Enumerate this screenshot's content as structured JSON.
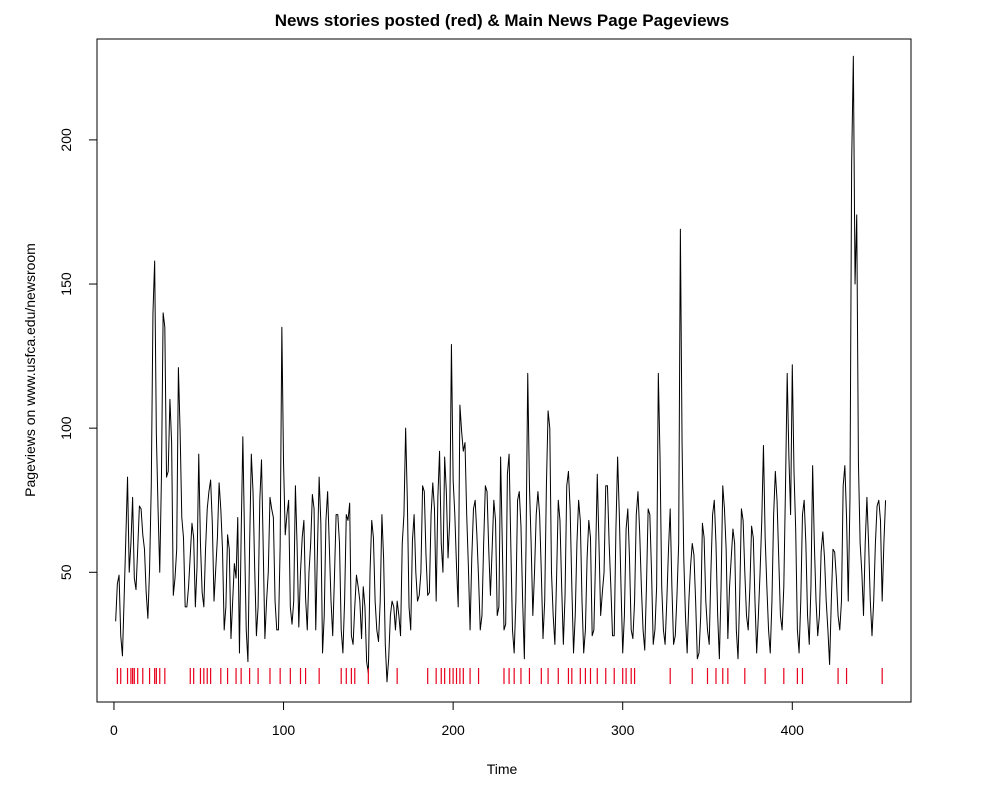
{
  "chart_data": {
    "type": "line",
    "title": "News stories posted (red) & Main News Page Pageviews",
    "xlabel": "Time",
    "ylabel": "Pageviews on www.usfca.edu/newsroom",
    "xlim": [
      -10,
      470
    ],
    "ylim": [
      5,
      235
    ],
    "x_ticks": [
      0,
      100,
      200,
      300,
      400
    ],
    "y_ticks": [
      50,
      100,
      150,
      200
    ],
    "grid": false,
    "legend": "none",
    "colors": {
      "line": "#000000",
      "story_marks": "#e8001c",
      "frame": "#000000"
    },
    "series": [
      {
        "start_x": 1,
        "values": [
          33,
          46,
          49,
          28,
          21,
          41,
          62,
          83,
          50,
          60,
          76,
          48,
          44,
          58,
          73,
          72,
          63,
          58,
          43,
          34,
          51,
          80,
          140,
          158,
          98,
          72,
          50,
          83,
          140,
          135,
          83,
          85,
          110,
          95,
          42,
          48,
          58,
          121,
          99,
          69,
          62,
          38,
          38,
          45,
          56,
          67,
          62,
          38,
          52,
          91,
          60,
          43,
          38,
          58,
          72,
          78,
          82,
          67,
          40,
          51,
          62,
          81,
          72,
          58,
          30,
          38,
          63,
          58,
          27,
          40,
          53,
          48,
          69,
          22,
          63,
          97,
          62,
          30,
          19,
          60,
          91,
          78,
          51,
          28,
          38,
          75,
          89,
          59,
          27,
          40,
          50,
          76,
          72,
          69,
          40,
          30,
          30,
          59,
          135,
          88,
          63,
          70,
          75,
          38,
          32,
          40,
          80,
          59,
          31,
          50,
          62,
          68,
          41,
          30,
          50,
          60,
          77,
          72,
          30,
          58,
          83,
          67,
          22,
          35,
          68,
          78,
          59,
          40,
          28,
          48,
          70,
          70,
          60,
          30,
          22,
          40,
          70,
          68,
          74,
          28,
          25,
          38,
          49,
          45,
          40,
          27,
          45,
          38,
          19,
          15,
          50,
          68,
          62,
          40,
          30,
          26,
          40,
          70,
          55,
          25,
          12,
          20,
          35,
          40,
          38,
          30,
          40,
          35,
          28,
          60,
          70,
          100,
          75,
          38,
          30,
          61,
          70,
          50,
          40,
          42,
          50,
          80,
          78,
          56,
          42,
          43,
          70,
          81,
          72,
          40,
          76,
          92,
          60,
          50,
          90,
          78,
          55,
          68,
          129,
          82,
          70,
          52,
          38,
          108,
          99,
          92,
          95,
          70,
          52,
          30,
          55,
          72,
          75,
          63,
          48,
          30,
          35,
          60,
          80,
          78,
          58,
          42,
          58,
          75,
          68,
          35,
          38,
          90,
          60,
          30,
          32,
          84,
          91,
          60,
          30,
          22,
          40,
          75,
          78,
          66,
          40,
          20,
          60,
          119,
          80,
          60,
          35,
          50,
          70,
          78,
          70,
          50,
          27,
          40,
          80,
          106,
          100,
          50,
          35,
          25,
          48,
          75,
          68,
          45,
          25,
          42,
          80,
          85,
          72,
          45,
          22,
          35,
          60,
          75,
          68,
          40,
          22,
          30,
          55,
          68,
          62,
          28,
          30,
          55,
          84,
          60,
          35,
          43,
          50,
          80,
          80,
          60,
          45,
          28,
          28,
          65,
          90,
          70,
          45,
          22,
          35,
          65,
          72,
          55,
          30,
          27,
          40,
          70,
          78,
          64,
          45,
          30,
          23,
          45,
          72,
          70,
          50,
          25,
          30,
          45,
          119,
          90,
          45,
          30,
          25,
          40,
          58,
          72,
          45,
          25,
          28,
          42,
          60,
          169,
          95,
          55,
          35,
          22,
          40,
          52,
          60,
          56,
          40,
          20,
          22,
          35,
          67,
          62,
          40,
          30,
          25,
          50,
          70,
          75,
          60,
          35,
          20,
          45,
          80,
          72,
          58,
          27,
          45,
          55,
          65,
          60,
          30,
          20,
          42,
          72,
          68,
          50,
          35,
          30,
          45,
          66,
          62,
          40,
          22,
          35,
          50,
          68,
          94,
          62,
          45,
          30,
          22,
          40,
          70,
          85,
          75,
          55,
          35,
          30,
          45,
          80,
          119,
          90,
          70,
          122,
          85,
          65,
          30,
          22,
          40,
          70,
          75,
          60,
          35,
          25,
          45,
          87,
          60,
          40,
          28,
          35,
          57,
          64,
          55,
          40,
          30,
          18,
          40,
          58,
          57,
          48,
          35,
          30,
          40,
          80,
          87,
          69,
          40,
          75,
          192,
          229,
          150,
          174,
          88,
          60,
          50,
          35,
          60,
          76,
          60,
          40,
          28,
          40,
          60,
          73,
          75,
          68,
          40,
          60,
          75
        ]
      }
    ],
    "story_posts": [
      2,
      4,
      8,
      10,
      11,
      12,
      14,
      17,
      21,
      24,
      25,
      27,
      30,
      45,
      47,
      51,
      53,
      55,
      57,
      63,
      67,
      72,
      75,
      80,
      85,
      92,
      98,
      104,
      110,
      113,
      121,
      134,
      137,
      140,
      142,
      150,
      167,
      185,
      190,
      193,
      195,
      198,
      200,
      202,
      204,
      206,
      210,
      215,
      230,
      233,
      236,
      240,
      245,
      252,
      256,
      262,
      268,
      270,
      275,
      278,
      281,
      285,
      290,
      295,
      300,
      302,
      305,
      307,
      328,
      341,
      350,
      355,
      359,
      362,
      372,
      384,
      395,
      403,
      406,
      427,
      432,
      453
    ]
  }
}
